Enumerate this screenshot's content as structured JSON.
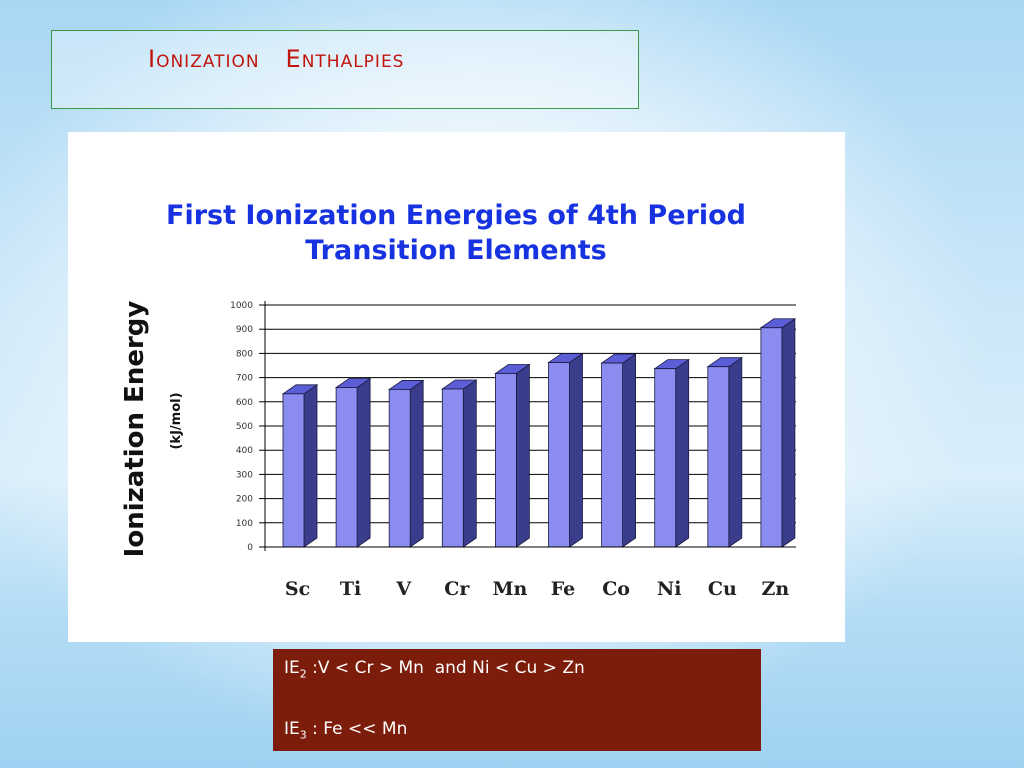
{
  "slide": {
    "title": "Ionization   Enthalpies"
  },
  "chart_data": {
    "type": "bar",
    "title_lines": [
      "First Ionization Energies of 4th Period",
      "Transition Elements"
    ],
    "ylabel": "Ionization Energy",
    "yunit": "(kJ/mol)",
    "ylim": [
      0,
      1000
    ],
    "yticks": [
      "0",
      "100",
      "200",
      "300",
      "400",
      "500",
      "600",
      "700",
      "800",
      "900",
      "1000"
    ],
    "categories": [
      "Sc",
      "Ti",
      "V",
      "Cr",
      "Mn",
      "Fe",
      "Co",
      "Ni",
      "Cu",
      "Zn"
    ],
    "values": [
      633,
      659,
      651,
      653,
      717,
      762,
      760,
      737,
      745,
      906
    ],
    "grid": true,
    "bar_colors": {
      "front": "#8a8cf0",
      "side": "#3a3d8c",
      "top": "#5b5ed6"
    }
  },
  "notes": {
    "line1": {
      "prefix": "IE",
      "sub": "2",
      "text": " :V < Cr > Mn  and Ni < Cu > Zn"
    },
    "line2": {
      "prefix": "IE",
      "sub": "3",
      "text": " : Fe << Mn"
    }
  }
}
